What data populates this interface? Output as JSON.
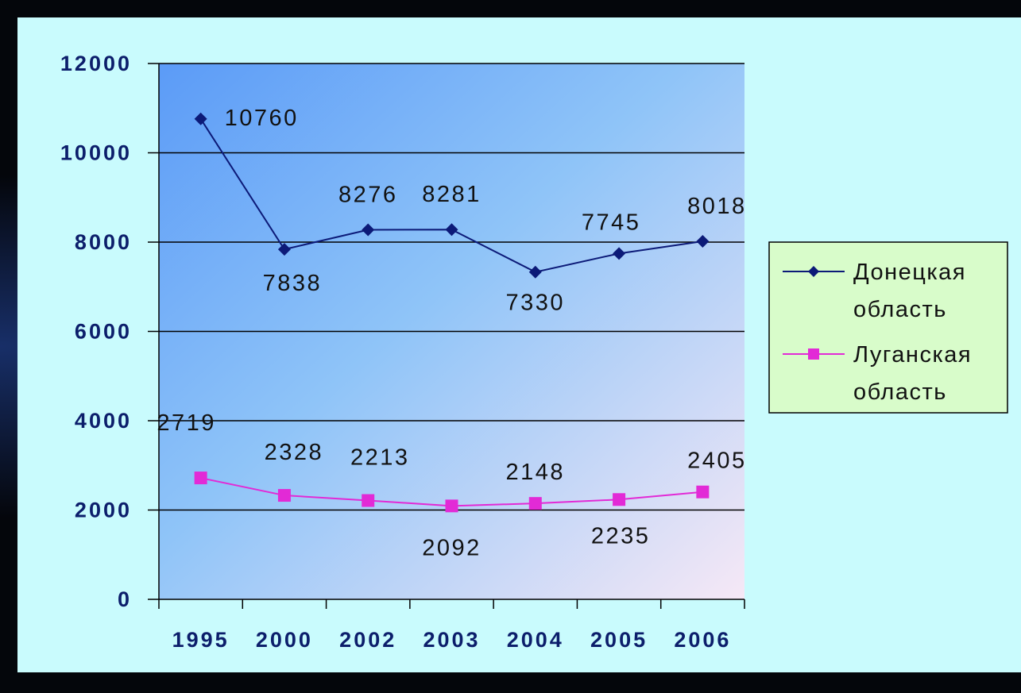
{
  "chart_data": {
    "type": "line",
    "categories": [
      "1995",
      "2000",
      "2002",
      "2003",
      "2004",
      "2005",
      "2006"
    ],
    "series": [
      {
        "name": "Донецкая область",
        "values": [
          10760,
          7838,
          8276,
          8281,
          7330,
          7745,
          8018
        ],
        "color": "#0c1a78",
        "marker": "diamond"
      },
      {
        "name": "Луганская область",
        "values": [
          2719,
          2328,
          2213,
          2092,
          2148,
          2235,
          2405
        ],
        "color": "#e22ad6",
        "marker": "square"
      }
    ],
    "yticks": [
      "0",
      "2000",
      "4000",
      "6000",
      "8000",
      "10000",
      "12000"
    ],
    "ylim": [
      0,
      12000
    ],
    "grid": true,
    "legend": {
      "position": "right",
      "lines": [
        [
          "Донецкая",
          "область"
        ],
        [
          "Луганская",
          "область"
        ]
      ]
    },
    "colors": {
      "plot_gradient_start": "#5b9bf7",
      "plot_gradient_end": "#f6e8f6",
      "legend_bg": "#d8fcca",
      "axis_text": "#0c1e6b"
    }
  }
}
